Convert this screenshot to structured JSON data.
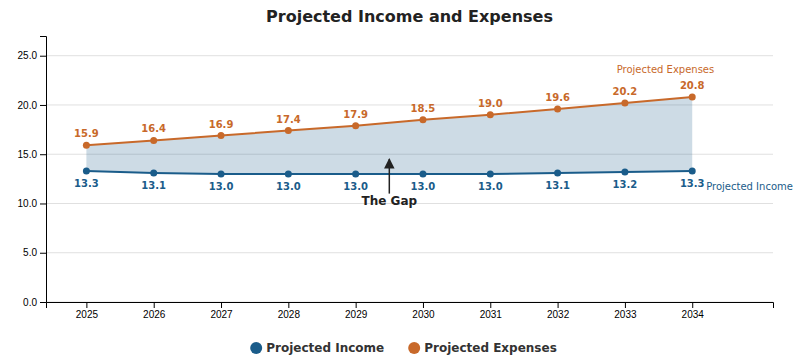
{
  "chart_data": {
    "type": "line",
    "title": "Projected Income and Expenses",
    "x": [
      2025,
      2026,
      2027,
      2028,
      2029,
      2030,
      2031,
      2032,
      2033,
      2034
    ],
    "series": [
      {
        "name": "Projected Income",
        "color": "#1a5c8a",
        "marker": "circle",
        "values": [
          13.3,
          13.1,
          13.0,
          13.0,
          13.0,
          13.0,
          13.0,
          13.1,
          13.2,
          13.3
        ],
        "value_labels": [
          "13.3",
          "13.1",
          "13.0",
          "13.0",
          "13.0",
          "13.0",
          "13.0",
          "13.1",
          "13.2",
          "13.3"
        ]
      },
      {
        "name": "Projected Expenses",
        "color": "#c8692a",
        "marker": "circle",
        "values": [
          15.9,
          16.4,
          16.9,
          17.4,
          17.9,
          18.5,
          19.0,
          19.6,
          20.2,
          20.8
        ],
        "value_labels": [
          "15.9",
          "16.4",
          "16.9",
          "17.4",
          "17.9",
          "18.5",
          "19.0",
          "19.6",
          "20.2",
          "20.8"
        ]
      }
    ],
    "xlim": [
      2024.4,
      2035.2
    ],
    "xticks": [
      2025,
      2026,
      2027,
      2028,
      2029,
      2030,
      2031,
      2032,
      2033,
      2034
    ],
    "ylim": [
      0,
      27
    ],
    "yticks": [
      {
        "value": 0.0,
        "label": "0.0"
      },
      {
        "value": 5.0,
        "label": "5.0"
      },
      {
        "value": 10.0,
        "label": "10.0"
      },
      {
        "value": 15.0,
        "label": "15.0"
      },
      {
        "value": 20.0,
        "label": "20.0"
      },
      {
        "value": 25.0,
        "label": "25.0"
      }
    ],
    "grid": true,
    "legend": "bottom",
    "data_labels": true,
    "annotations": [
      {
        "text": "The Gap",
        "x": 2029.5,
        "y": 10.8,
        "arrow_y": 14.5
      }
    ]
  }
}
